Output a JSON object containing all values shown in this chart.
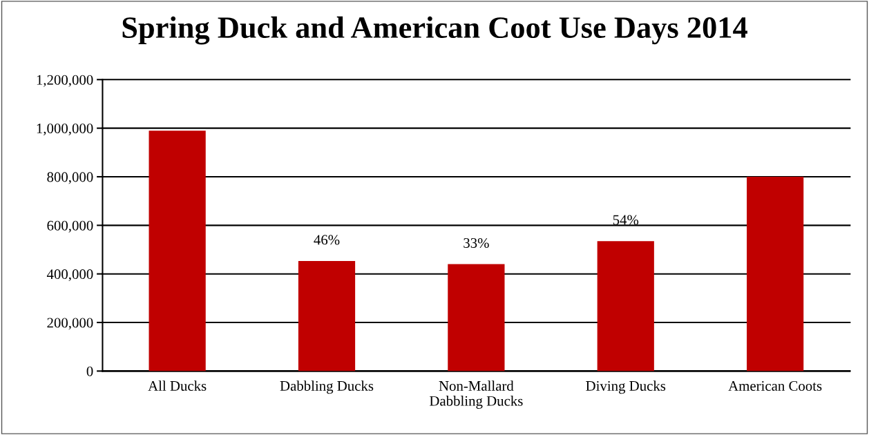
{
  "chart_data": {
    "type": "bar",
    "title": "Spring Duck and American Coot Use Days 2014",
    "categories": [
      "All Ducks",
      "Dabbling Ducks",
      "Non-Mallard\nDabbling Ducks",
      "Diving Ducks",
      "American Coots"
    ],
    "values": [
      990000,
      453000,
      440000,
      535000,
      800000
    ],
    "annotations": [
      {
        "text": "46%",
        "x": "Dabbling Ducks",
        "y": 453000
      },
      {
        "text": "33%",
        "x": "Non-Mallard\nDabbling Ducks",
        "y": 440000
      },
      {
        "text": "54%",
        "x": "Diving Ducks",
        "y": 535000
      }
    ],
    "color": "#c00000",
    "ylim": [
      0,
      1200000
    ],
    "yticks": [
      {
        "value": 0,
        "label": "0"
      },
      {
        "value": 200000,
        "label": "200,000"
      },
      {
        "value": 400000,
        "label": "400,000"
      },
      {
        "value": 600000,
        "label": "600,000"
      },
      {
        "value": 800000,
        "label": "800,000"
      },
      {
        "value": 1000000,
        "label": "1,000,000"
      },
      {
        "value": 1200000,
        "label": "1,200,000"
      }
    ],
    "grid": "y",
    "legend": false
  }
}
